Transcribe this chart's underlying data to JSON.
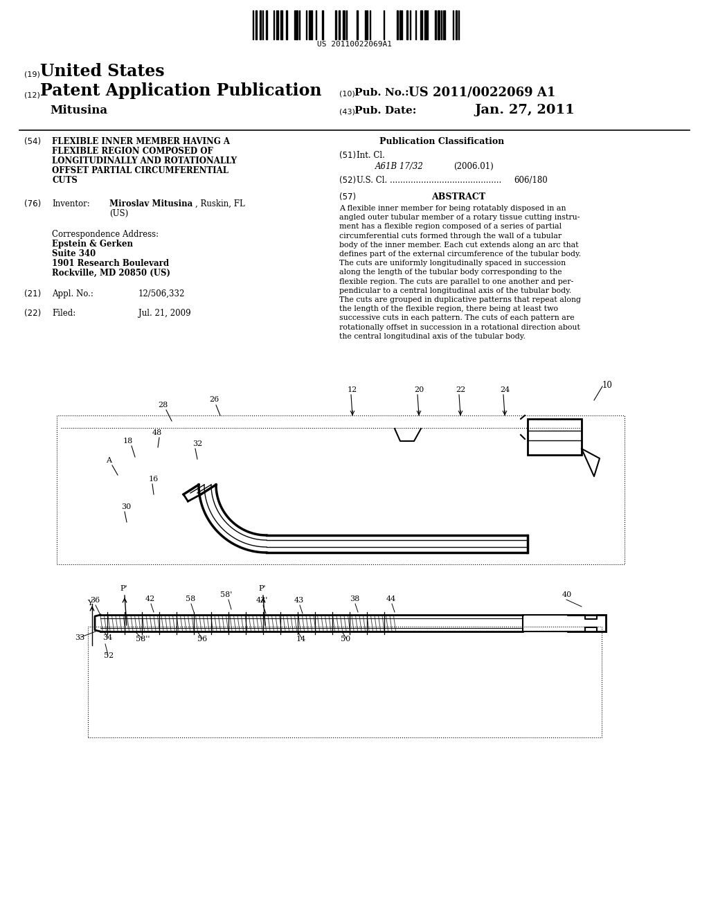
{
  "page_bg": "#ffffff",
  "barcode_text": "US 20110022069A1",
  "header_19": "(19)",
  "header_19_text": "United States",
  "header_12": "(12)",
  "header_12_text": "Patent Application Publication",
  "header_10": "(10)",
  "pub_no": "Pub. No.: US 2011/0022069 A1",
  "inventor_name": "Mitusina",
  "header_43": "(43)",
  "pub_date_label": "Pub. Date:",
  "pub_date": "Jan. 27, 2011",
  "field_54_label": "(54)",
  "pub_class_label": "Publication Classification",
  "field_51_label": "(51)",
  "field_51_class": "A61B 17/32",
  "field_51_year": "(2006.01)",
  "field_52_label": "(52)",
  "field_57_label": "(57)",
  "field_57_abstract_title": "ABSTRACT",
  "abstract_lines": [
    "A flexible inner member for being rotatably disposed in an",
    "angled outer tubular member of a rotary tissue cutting instru-",
    "ment has a flexible region composed of a series of partial",
    "circumferential cuts formed through the wall of a tubular",
    "body of the inner member. Each cut extends along an arc that",
    "defines part of the external circumference of the tubular body.",
    "The cuts are uniformly longitudinally spaced in succession",
    "along the length of the tubular body corresponding to the",
    "flexible region. The cuts are parallel to one another and per-",
    "pendicular to a central longitudinal axis of the tubular body.",
    "The cuts are grouped in duplicative patterns that repeat along",
    "the length of the flexible region, there being at least two",
    "successive cuts in each pattern. The cuts of each pattern are",
    "rotationally offset in succession in a rotational direction about",
    "the central longitudinal axis of the tubular body."
  ],
  "field_76_label": "(76)",
  "corr_label": "Correspondence Address:",
  "corr_firm": "Epstein & Gerken",
  "corr_suite": "Suite 340",
  "corr_street": "1901 Research Boulevard",
  "corr_city": "Rockville, MD 20850 (US)",
  "field_21_label": "(21)",
  "field_21_no": "12/506,332",
  "field_22_label": "(22)",
  "field_22_date": "Jul. 21, 2009"
}
